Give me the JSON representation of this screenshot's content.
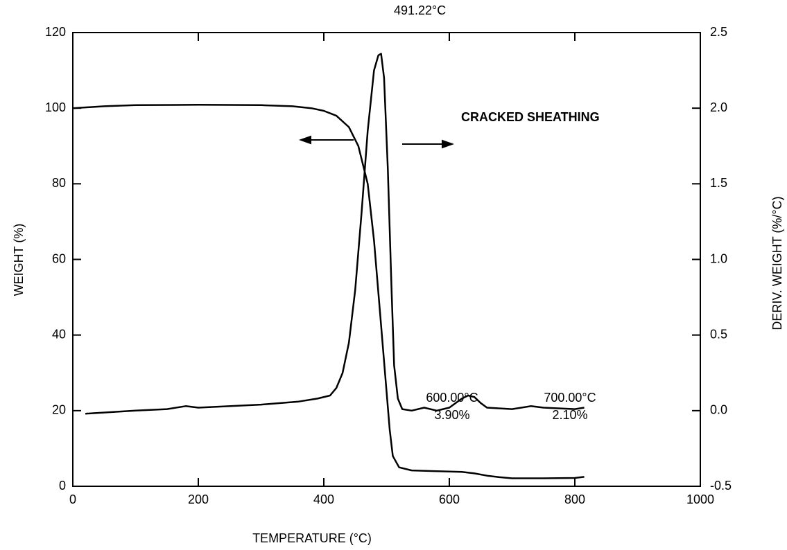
{
  "chart_data": {
    "type": "line",
    "xlabel": "TEMPERATURE (°C)",
    "ylabel": "WEIGHT (%)",
    "y2label": "DERIV. WEIGHT (%/°C)",
    "annotations": [
      "491.22°C",
      "CRACKED SHEATHING",
      "600.00°C",
      "3.90%",
      "700.00°C",
      "2.10%"
    ],
    "xlim": [
      0,
      1000
    ],
    "xticks": [
      0,
      200,
      400,
      600,
      800,
      1000
    ],
    "ylim": [
      0,
      120
    ],
    "yticks": [
      0,
      20,
      40,
      60,
      80,
      100,
      120
    ],
    "y2lim": [
      -0.5,
      2.5
    ],
    "y2ticks": [
      {
        "value": -0.5,
        "label": "-0.5"
      },
      {
        "value": 0,
        "label": "0.0"
      },
      0.5,
      {
        "value": 1,
        "label": "1.0"
      },
      1.5,
      {
        "value": 2,
        "label": "2.0"
      },
      2.5
    ],
    "grid": false,
    "series": [
      {
        "color": "#000000",
        "axis": "y",
        "x": [
          0,
          50,
          100,
          200,
          300,
          350,
          380,
          400,
          420,
          440,
          455,
          470,
          480,
          490,
          500,
          505,
          510,
          520,
          540,
          580,
          600,
          620,
          640,
          660,
          680,
          700,
          750,
          800,
          815
        ],
        "values": [
          100,
          100.5,
          100.8,
          100.9,
          100.8,
          100.5,
          100,
          99.3,
          98,
          95,
          90,
          80,
          65,
          45,
          25,
          15,
          8,
          5,
          4.2,
          4,
          3.9,
          3.8,
          3.4,
          2.8,
          2.4,
          2.1,
          2.1,
          2.2,
          2.5
        ]
      },
      {
        "color": "#000000",
        "axis": "y2",
        "x": [
          20,
          100,
          150,
          180,
          200,
          300,
          360,
          390,
          410,
          420,
          430,
          440,
          450,
          460,
          470,
          480,
          487,
          491.22,
          496,
          502,
          508,
          512,
          518,
          525,
          540,
          560,
          580,
          600,
          620,
          630,
          640,
          650,
          660,
          700,
          730,
          750,
          800,
          815
        ],
        "values": [
          -0.02,
          0,
          0.01,
          0.03,
          0.02,
          0.04,
          0.06,
          0.08,
          0.1,
          0.15,
          0.25,
          0.45,
          0.8,
          1.3,
          1.85,
          2.25,
          2.35,
          2.36,
          2.2,
          1.6,
          0.8,
          0.3,
          0.08,
          0.01,
          0,
          0.02,
          0,
          0.02,
          0.08,
          0.1,
          0.09,
          0.05,
          0.02,
          0.01,
          0.03,
          0.02,
          0.01,
          0.02
        ]
      }
    ]
  }
}
